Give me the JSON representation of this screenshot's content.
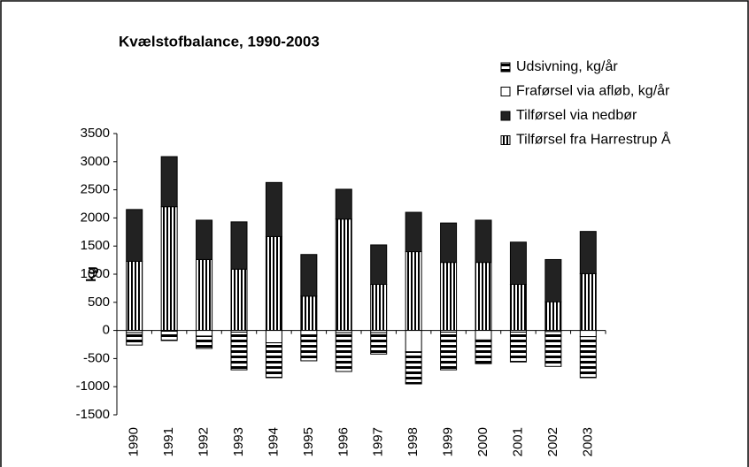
{
  "chart_data": {
    "type": "bar",
    "stacked": true,
    "title": "Kvælstofbalance, 1990-2003",
    "y_label": "kg",
    "categories": [
      "1990",
      "1991",
      "1992",
      "1993",
      "1994",
      "1995",
      "1996",
      "1997",
      "1998",
      "1999",
      "2000",
      "2001",
      "2002",
      "2003"
    ],
    "series": [
      {
        "name": "Udsivning, kg/år",
        "color": "#000000",
        "pattern": "horizontal-stripes",
        "values": [
          -220,
          -170,
          -220,
          -670,
          -620,
          -460,
          -690,
          -380,
          -570,
          -670,
          -420,
          -530,
          -620,
          -730
        ]
      },
      {
        "name": "Fraførsel via afløb, kg/år",
        "color": "#ffffff",
        "pattern": "solid",
        "values": [
          -40,
          -10,
          -100,
          -30,
          -220,
          -80,
          -40,
          -40,
          -380,
          -30,
          -170,
          -30,
          -20,
          -110
        ]
      },
      {
        "name": "Tilførsel via nedbør",
        "color": "#222222",
        "pattern": "solid",
        "values": [
          920,
          890,
          700,
          840,
          960,
          740,
          530,
          700,
          700,
          700,
          750,
          750,
          750,
          750
        ]
      },
      {
        "name": "Tilførsel fra Harrestrup Å",
        "color": "#000000",
        "pattern": "vertical-stripes",
        "values": [
          1230,
          2200,
          1260,
          1090,
          1670,
          610,
          1980,
          820,
          1400,
          1210,
          1210,
          820,
          510,
          1010
        ]
      }
    ],
    "ylim": [
      -1500,
      3500
    ],
    "yticks": [
      -1500,
      -1000,
      -500,
      0,
      500,
      1000,
      1500,
      2000,
      2500,
      3000,
      3500
    ],
    "grid": false,
    "legend": "top-right"
  }
}
